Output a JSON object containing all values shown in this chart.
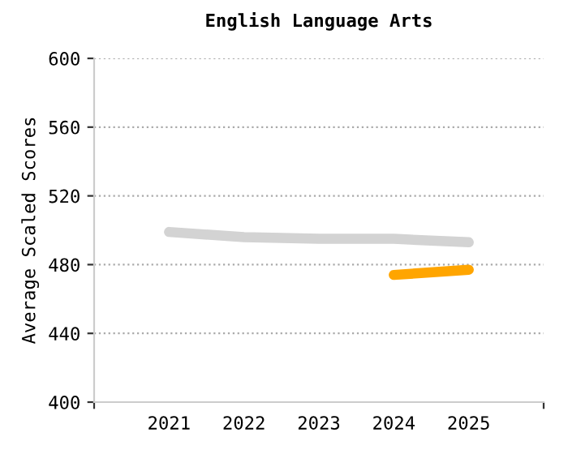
{
  "chart_data": {
    "type": "line",
    "title": "English Language Arts",
    "ylabel": "Average Scaled Scores",
    "x": [
      2021,
      2022,
      2023,
      2024,
      2025
    ],
    "series": [
      {
        "color": "#d3d3d3",
        "values": [
          499,
          496,
          495,
          495,
          493
        ]
      },
      {
        "color": "#ffa500",
        "values": [
          null,
          null,
          null,
          474,
          477
        ]
      }
    ],
    "xlim": [
      2020,
      2026
    ],
    "xticks": [
      {
        "value": 2020,
        "label": null
      },
      2021,
      2022,
      2023,
      2024,
      2025,
      {
        "value": 2026,
        "label": null
      }
    ],
    "ylim": [
      400,
      600
    ],
    "yticks": [
      400,
      440,
      480,
      520,
      560,
      600
    ],
    "grid": "y",
    "marker": "none",
    "line_style": "solid"
  }
}
